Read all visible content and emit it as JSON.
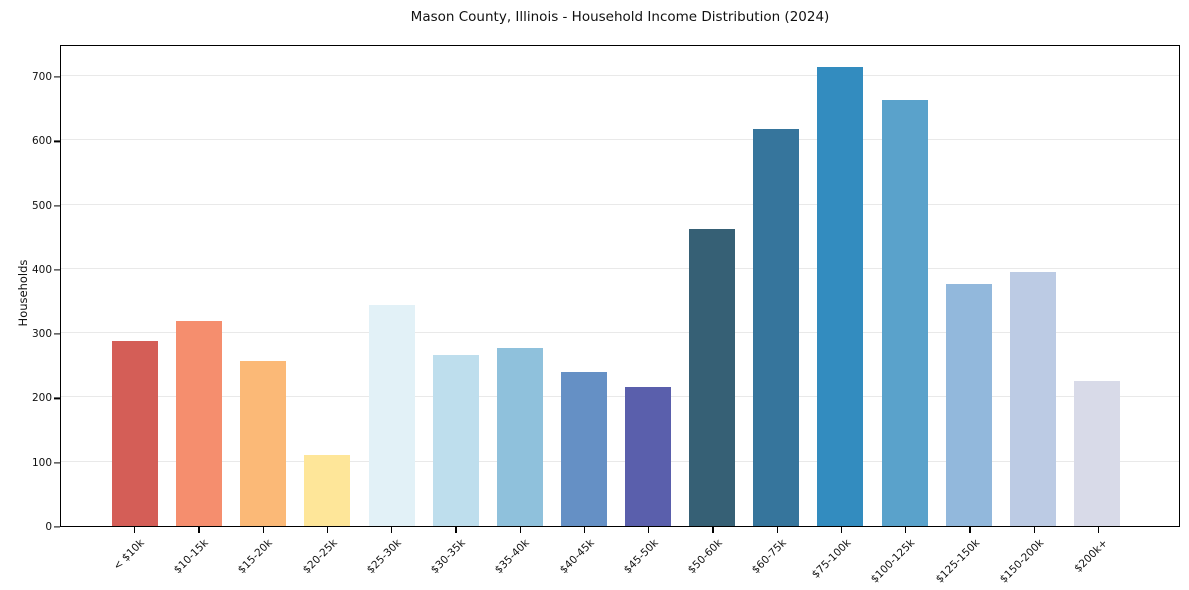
{
  "chart_data": {
    "type": "bar",
    "title": "Mason County, Illinois - Household Income Distribution (2024)",
    "xlabel": "",
    "ylabel": "Households",
    "categories": [
      "< $10k",
      "$10-15k",
      "$15-20k",
      "$20-25k",
      "$25-30k",
      "$30-35k",
      "$35-40k",
      "$40-45k",
      "$45-50k",
      "$50-60k",
      "$60-75k",
      "$75-100k",
      "$100-125k",
      "$125-150k",
      "$150-200k",
      "$200k+"
    ],
    "values": [
      288,
      319,
      257,
      111,
      344,
      266,
      277,
      240,
      216,
      462,
      617,
      714,
      663,
      376,
      396,
      226
    ],
    "bar_colors": [
      "#d45e57",
      "#f58e6e",
      "#fbb977",
      "#fee699",
      "#e2f1f7",
      "#bedeed",
      "#8fc1dc",
      "#6590c5",
      "#5a5fac",
      "#366075",
      "#36759c",
      "#338cbf",
      "#5aa2cb",
      "#92b8dc",
      "#bccbe4",
      "#d8dae8"
    ],
    "ylim": [
      0,
      750
    ],
    "yticks": [
      0,
      100,
      200,
      300,
      400,
      500,
      600,
      700
    ],
    "grid": "horizontal",
    "gridline_color": "#e9e9e9",
    "legend": "none",
    "x_tick_rotation": 45
  }
}
